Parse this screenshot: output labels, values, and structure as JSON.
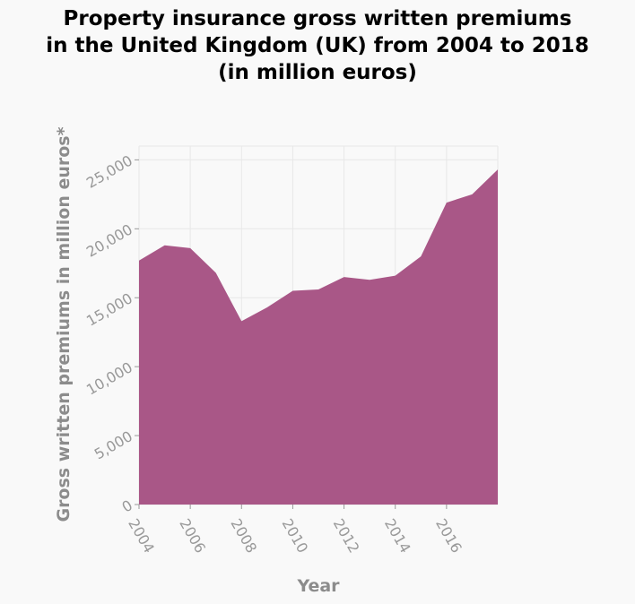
{
  "chart_data": {
    "type": "area",
    "title": "Property insurance gross written premiums\nin the United Kingdom (UK) from 2004 to 2018\n(in million euros)",
    "xlabel": "Year",
    "ylabel": "Gross written premiums in million euros*",
    "x": [
      2004,
      2005,
      2006,
      2007,
      2008,
      2009,
      2010,
      2011,
      2012,
      2013,
      2014,
      2015,
      2016,
      2017,
      2018
    ],
    "series": [
      {
        "values": [
          17700,
          18800,
          18600,
          16800,
          13300,
          14300,
          15500,
          15600,
          16500,
          16300,
          16600,
          18000,
          21900,
          22500,
          24300
        ]
      }
    ],
    "xticks": [
      2004,
      2006,
      2008,
      2010,
      2012,
      2014,
      2016
    ],
    "xtick_labels": [
      "2004",
      "2006",
      "2008",
      "2010",
      "2012",
      "2014",
      "2016"
    ],
    "yticks": [
      0,
      5000,
      10000,
      15000,
      20000,
      25000
    ],
    "ytick_labels": [
      "0",
      "5,000",
      "10,000",
      "15,000",
      "20,000",
      "25,000"
    ],
    "xlim": [
      2004,
      2018
    ],
    "ylim": [
      0,
      26000
    ],
    "grid": true,
    "fill_color": "#a95787",
    "grid_color": "#e8e8e8"
  }
}
